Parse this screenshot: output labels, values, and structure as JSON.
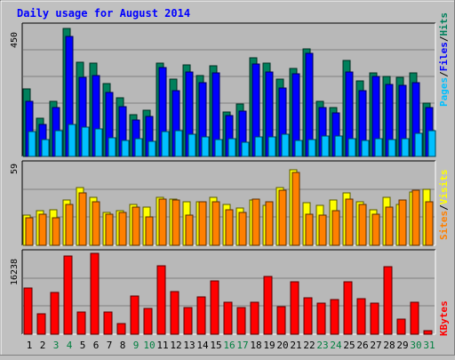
{
  "chart_data": {
    "type": "bar",
    "title": "Daily usage for August 2014",
    "days": [
      "1",
      "2",
      "3",
      "4",
      "5",
      "6",
      "7",
      "8",
      "9",
      "10",
      "11",
      "12",
      "13",
      "14",
      "15",
      "16",
      "17",
      "18",
      "19",
      "20",
      "21",
      "22",
      "23",
      "24",
      "25",
      "26",
      "27",
      "28",
      "29",
      "30",
      "31"
    ],
    "day_colors": [
      "#000000",
      "#000000",
      "#007f3f",
      "#007f3f",
      "#000000",
      "#000000",
      "#000000",
      "#000000",
      "#007f3f",
      "#007f3f",
      "#000000",
      "#000000",
      "#000000",
      "#000000",
      "#000000",
      "#007f3f",
      "#007f3f",
      "#000000",
      "#000000",
      "#000000",
      "#000000",
      "#000000",
      "#007f3f",
      "#007f3f",
      "#000000",
      "#000000",
      "#000000",
      "#000000",
      "#000000",
      "#007f3f",
      "#007f3f"
    ],
    "panels": [
      {
        "name": "top",
        "ymax_label": "450",
        "ymax": 450,
        "series": [
          {
            "name": "Hits",
            "color": "#00805c",
            "values": [
              234,
              131,
              190,
              444,
              326,
              323,
              252,
              203,
              146,
              160,
              323,
              268,
              319,
              279,
              314,
              155,
              181,
              342,
              325,
              268,
              306,
              374,
              190,
              170,
              332,
              263,
              290,
              277,
              275,
              291,
              185
            ]
          },
          {
            "name": "Files",
            "color": "#0000ff",
            "values": [
              190,
              110,
              169,
              416,
              275,
              280,
              221,
              174,
              125,
              138,
              308,
              227,
              294,
              256,
              291,
              142,
              157,
              320,
              293,
              236,
              287,
              356,
              168,
              152,
              292,
              229,
              276,
              251,
              247,
              255,
              170
            ]
          },
          {
            "name": "Pages",
            "color": "#00c0ff",
            "values": [
              86,
              60,
              90,
              111,
              101,
              96,
              66,
              55,
              61,
              51,
              87,
              88,
              76,
              67,
              60,
              61,
              50,
              68,
              67,
              76,
              56,
              58,
              70,
              72,
              63,
              54,
              61,
              58,
              63,
              79,
              90
            ]
          }
        ]
      },
      {
        "name": "middle",
        "ymax_label": "59",
        "ymax": 59,
        "series": [
          {
            "name": "Visits",
            "color": "#ffff00",
            "values": [
              22,
              25,
              26,
              33,
              42,
              35,
              24,
              25,
              30,
              28,
              35,
              34,
              32,
              32,
              35,
              30,
              27,
              33,
              29,
              42,
              55,
              31,
              29,
              33,
              38,
              32,
              26,
              35,
              30,
              39,
              41
            ]
          },
          {
            "name": "Sites",
            "color": "#ff8000",
            "values": [
              20,
              23,
              20,
              30,
              38,
              32,
              23,
              24,
              28,
              21,
              34,
              33,
              22,
              32,
              32,
              26,
              24,
              34,
              32,
              40,
              53,
              23,
              22,
              25,
              34,
              30,
              23,
              28,
              33,
              40,
              32
            ]
          }
        ]
      },
      {
        "name": "bottom",
        "ymax_label": "16238",
        "ymax": 16238,
        "series": [
          {
            "name": "KBytes",
            "color": "#ff0000",
            "values": [
              9250,
              4150,
              8400,
              15660,
              4550,
              16238,
              4400,
              2200,
              7600,
              5200,
              13700,
              8600,
              5400,
              7500,
              10700,
              6500,
              5300,
              6400,
              11600,
              5600,
              10500,
              7300,
              6200,
              6900,
              10500,
              7200,
              6200,
              13500,
              3000,
              6500,
              800
            ]
          }
        ]
      }
    ],
    "legend_labels": [
      "Pages",
      "/",
      "Files",
      "/",
      "Hits",
      "Sites",
      "/",
      "Visits",
      "KBytes"
    ]
  },
  "colors": {
    "background": "#c0c0c0",
    "plot_bg": "#b8b8b8",
    "frame_dark": "#000000",
    "title": "#0000ff",
    "grid": "#808080",
    "legend_pages": "#00c0ff",
    "legend_files": "#0000ff",
    "legend_hits": "#00805c",
    "legend_sites": "#ff8000",
    "legend_visits": "#ffff00",
    "legend_kbytes": "#ff0000",
    "sep": "#000000"
  }
}
